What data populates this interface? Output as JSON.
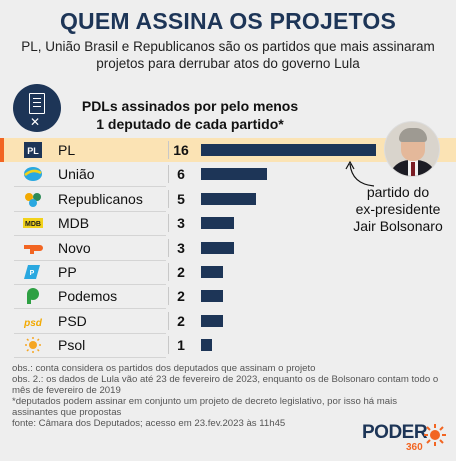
{
  "header": {
    "title": "QUEM ASSINA OS PROJETOS",
    "subtitle": "PL, União Brasil e Republicanos são os partidos que mais assinaram projetos para derrubar atos do governo Lula"
  },
  "chart_data": {
    "type": "bar",
    "orientation": "horizontal",
    "title_lines": [
      "PDLs assinados por pelo menos",
      "1 deputado de cada partido*"
    ],
    "categories": [
      "PL",
      "União",
      "Republicanos",
      "MDB",
      "Novo",
      "PP",
      "Podemos",
      "PSD",
      "Psol"
    ],
    "values": [
      16,
      6,
      5,
      3,
      3,
      2,
      2,
      2,
      1
    ],
    "highlight": "PL",
    "bar_color": "#1d3557",
    "highlight_color": "#fbe3b4",
    "xlim": [
      0,
      16
    ],
    "grid": false
  },
  "annotation": {
    "lines": [
      "partido do",
      "ex-presidente",
      "Jair Bolsonaro"
    ]
  },
  "logos": [
    {
      "party": "PL",
      "icon": "pl-logo-icon",
      "color": "#1d3557"
    },
    {
      "party": "União",
      "icon": "uniao-logo-icon",
      "color": "#2aa8e0"
    },
    {
      "party": "Republicanos",
      "icon": "republicanos-logo-icon",
      "color": "#2e8b57"
    },
    {
      "party": "MDB",
      "icon": "mdb-logo-icon",
      "color": "#1a1a1a"
    },
    {
      "party": "Novo",
      "icon": "novo-logo-icon",
      "color": "#f26522"
    },
    {
      "party": "PP",
      "icon": "pp-logo-icon",
      "color": "#2aa8e0"
    },
    {
      "party": "Podemos",
      "icon": "podemos-logo-icon",
      "color": "#2ea043"
    },
    {
      "party": "PSD",
      "icon": "psd-logo-icon",
      "color": "#f2a900"
    },
    {
      "party": "Psol",
      "icon": "psol-logo-icon",
      "color": "#f5a623"
    }
  ],
  "notes": [
    "obs.: conta considera os partidos dos deputados que assinam o projeto",
    "obs. 2.: os dados de Lula vão até 23 de fevereiro de 2023, enquanto os de Bolsonaro contam todo o mês de fevereiro de 2019",
    "*deputados podem assinar em conjunto um projeto de decreto legislativo, por isso há mais assinantes que propostas",
    "fonte: Câmara dos Deputados; acesso em 23.fev.2023 às 11h45"
  ],
  "brand": {
    "word": "PODER",
    "number": "360"
  }
}
